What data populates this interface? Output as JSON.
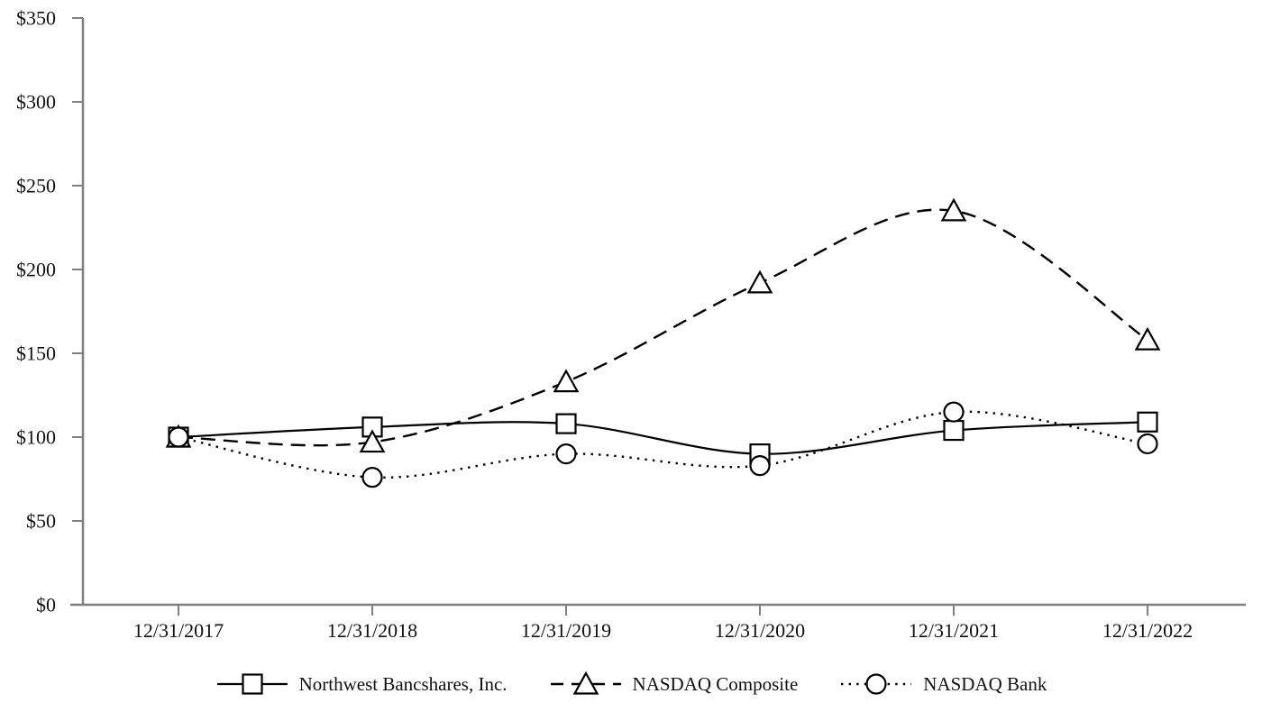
{
  "chart_data": {
    "type": "line",
    "title": "",
    "categories": [
      "12/31/2017",
      "12/31/2018",
      "12/31/2019",
      "12/31/2020",
      "12/31/2021",
      "12/31/2022"
    ],
    "series": [
      {
        "name": "Northwest Bancshares, Inc.",
        "marker": "square",
        "line_style": "solid",
        "values": [
          100,
          106,
          108,
          90,
          104,
          109
        ]
      },
      {
        "name": "NASDAQ Composite",
        "marker": "triangle",
        "line_style": "dashed",
        "values": [
          100,
          97,
          133,
          192,
          235,
          158
        ]
      },
      {
        "name": "NASDAQ Bank",
        "marker": "circle",
        "line_style": "dotted",
        "values": [
          100,
          76,
          90,
          83,
          115,
          96
        ]
      }
    ],
    "y_axis": {
      "min": 0,
      "max": 350,
      "step": 50,
      "ticks": [
        {
          "value": 0,
          "label": "$0"
        },
        {
          "value": 50,
          "label": "$50"
        },
        {
          "value": 100,
          "label": "$100"
        },
        {
          "value": 150,
          "label": "$150"
        },
        {
          "value": 200,
          "label": "$200"
        },
        {
          "value": 250,
          "label": "$250"
        },
        {
          "value": 300,
          "label": "$300"
        },
        {
          "value": 350,
          "label": "$350"
        }
      ]
    },
    "x_axis": {
      "tick_labels": [
        "12/31/2017",
        "12/31/2018",
        "12/31/2019",
        "12/31/2020",
        "12/31/2021",
        "12/31/2022"
      ]
    },
    "legend": {
      "position": "bottom",
      "items": [
        "Northwest Bancshares, Inc.",
        "NASDAQ Composite",
        "NASDAQ Bank"
      ]
    },
    "colors": {
      "series_line": "#000000",
      "marker_fill": "#ffffff",
      "axis": "#808080",
      "background": "#ffffff",
      "text": "#111111"
    },
    "grid": "off",
    "smooth_lines": true
  }
}
